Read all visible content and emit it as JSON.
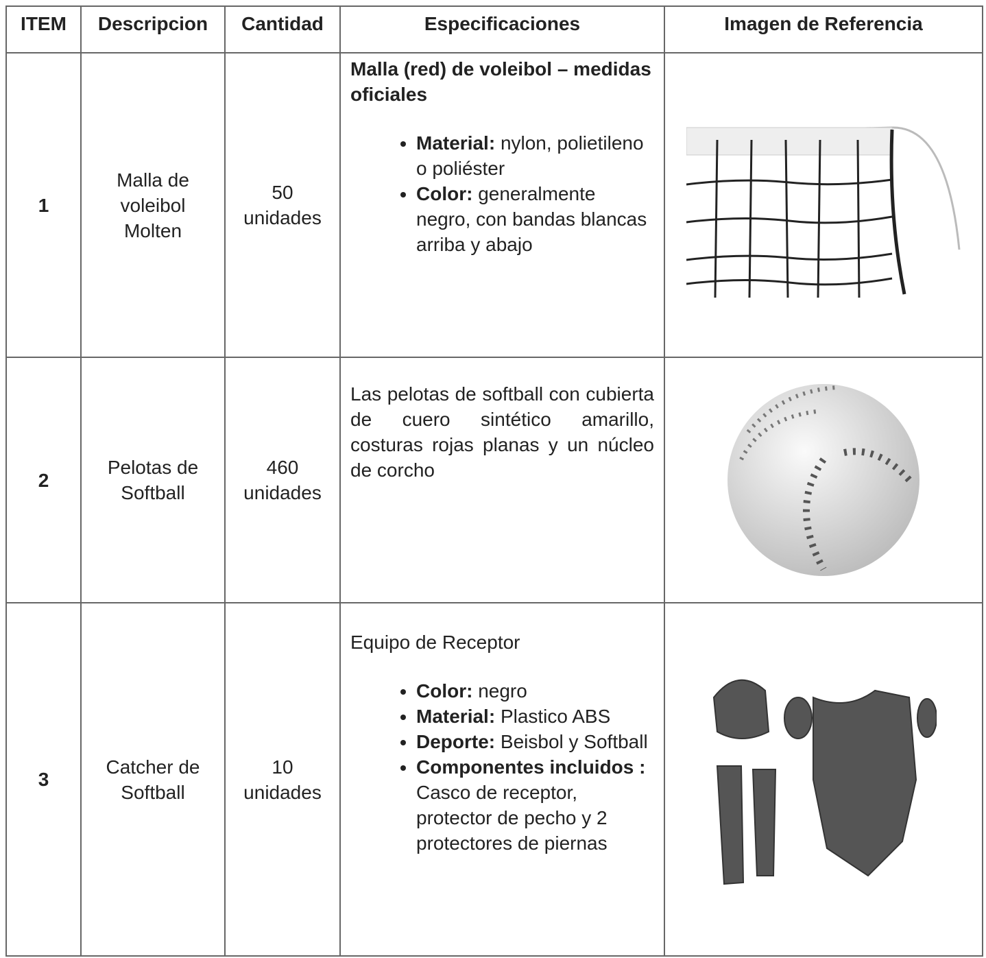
{
  "table": {
    "header": [
      "ITEM",
      "Descripcion",
      "Cantidad",
      "Especificaciones",
      "Imagen de Referencia"
    ],
    "rows": [
      {
        "item": "1",
        "descripcion": "Malla de voleibol Molten",
        "cantidad": "50 unidades",
        "specs": {
          "title": "Malla (red) de voleibol – medidas oficiales",
          "bullets": [
            {
              "label": "Material:",
              "text": "nylon, polietileno o poliéster"
            },
            {
              "label": "Color:",
              "text": "generalmente negro, con bandas blancas arriba y abajo"
            }
          ]
        }
      },
      {
        "item": "2",
        "descripcion": "Pelotas de Softball",
        "cantidad": "460 unidades",
        "specs": {
          "paragraph": "Las pelotas de softball con cubierta de cuero sintético amarillo, costuras rojas planas y un núcleo de corcho"
        }
      },
      {
        "item": "3",
        "descripcion": "Catcher de Softball",
        "cantidad": "10 unidades",
        "specs": {
          "intro": "Equipo de Receptor",
          "bullets": [
            {
              "label": "Color:",
              "text": "negro"
            },
            {
              "label": "Material:",
              "text": "Plastico ABS"
            },
            {
              "label": "Deporte:",
              "text": "Beisbol y Softball"
            },
            {
              "label": "Componentes incluidos :",
              "text": "Casco de receptor, protector de pecho y 2 protectores de piernas"
            }
          ]
        }
      }
    ]
  }
}
